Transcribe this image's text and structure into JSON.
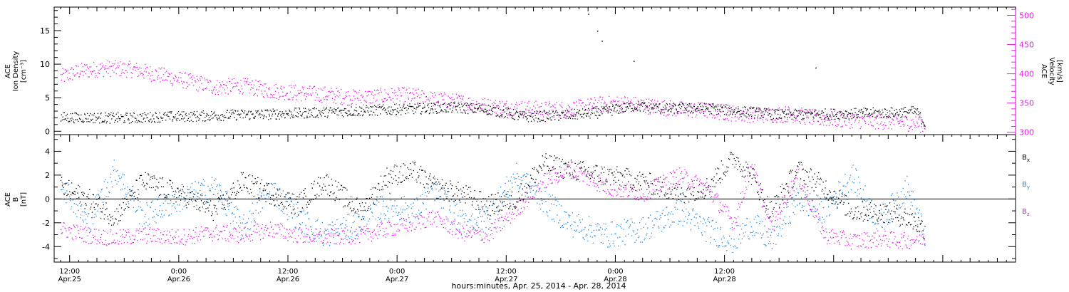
{
  "chart_data": [
    {
      "type": "scatter",
      "panel": "top",
      "ylabel_left": [
        "ACE",
        "Ion Density",
        "[cm⁻³]"
      ],
      "ylabel_right": [
        "ACE",
        "Velocity",
        "[km/s]"
      ],
      "ylim_left": [
        -0.5,
        18.5
      ],
      "ylim_right": [
        296,
        514
      ],
      "yticks_left": [
        "0",
        "5",
        "10",
        "15"
      ],
      "yticks_right": [
        "300",
        "350",
        "400",
        "450",
        "500"
      ],
      "colors": {
        "density": "#000000",
        "velocity": "#e81ce8"
      },
      "x_unit": "hours since Apr.25 00:00",
      "series": [
        {
          "color": "#000000",
          "axis": "left",
          "x": [
            11,
            14,
            18,
            22,
            26,
            30,
            34,
            38,
            42,
            46,
            50,
            54,
            58,
            62,
            66,
            70,
            74,
            78,
            82,
            86,
            90,
            94,
            98,
            102,
            105,
            106
          ],
          "y": [
            2.1,
            2.1,
            2.0,
            2.2,
            2.3,
            2.5,
            2.6,
            2.8,
            3.0,
            3.2,
            3.4,
            3.6,
            3.3,
            2.2,
            2.4,
            2.8,
            3.8,
            3.4,
            3.5,
            3.0,
            2.5,
            2.6,
            2.7,
            2.8,
            3.0,
            1.3
          ]
        },
        {
          "color": "#e81ce8",
          "axis": "right",
          "x": [
            11,
            13,
            16,
            19,
            22,
            25,
            28,
            31,
            34,
            37,
            40,
            43,
            46,
            49,
            52,
            55,
            58,
            61,
            64,
            67,
            70,
            73,
            76,
            79,
            82,
            85,
            88,
            91,
            94,
            97,
            100,
            103,
            106
          ],
          "y": [
            395,
            405,
            410,
            408,
            398,
            388,
            378,
            380,
            372,
            368,
            365,
            360,
            362,
            364,
            357,
            352,
            345,
            342,
            340,
            340,
            348,
            350,
            345,
            340,
            338,
            333,
            330,
            332,
            325,
            322,
            320,
            318,
            314
          ]
        }
      ],
      "sparse_points": [
        {
          "x": 69,
          "y": 17.5
        },
        {
          "x": 70,
          "y": 15.0
        },
        {
          "x": 70.5,
          "y": 13.5
        },
        {
          "x": 74,
          "y": 10.5
        },
        {
          "x": 94,
          "y": 9.5
        }
      ]
    },
    {
      "type": "scatter",
      "panel": "bottom",
      "ylabel_left": [
        "ACE",
        "B",
        "[nT]"
      ],
      "ylim": [
        -5.3,
        5.4
      ],
      "yticks": [
        "-4",
        "-2",
        "0",
        "2",
        "4"
      ],
      "legend": [
        "B",
        "B",
        "B"
      ],
      "legend_subscripts": [
        "x",
        "y",
        "z"
      ],
      "legend_position": "right",
      "colors": {
        "Bx": "#000000",
        "By": "#1e88e5",
        "Bz": "#e81ce8"
      },
      "x_unit": "hours since Apr.25 00:00",
      "series": [
        {
          "name": "Bx",
          "color": "#000000",
          "x": [
            11,
            14,
            17,
            20,
            24,
            28,
            31,
            34,
            37,
            40,
            44,
            47,
            50,
            52,
            55,
            58,
            61,
            64,
            67,
            71,
            75,
            79,
            82,
            85,
            87,
            89,
            92,
            95,
            98,
            101,
            104,
            106
          ],
          "y": [
            1.0,
            0.0,
            -1.5,
            1.5,
            0.5,
            -1.0,
            1.5,
            0.5,
            -0.5,
            1.5,
            -1.0,
            2.0,
            2.3,
            1.0,
            0.5,
            -0.5,
            0.0,
            3.0,
            2.5,
            2.0,
            1.5,
            0.5,
            1.0,
            3.5,
            2.0,
            -1.0,
            2.5,
            1.0,
            -1.0,
            -1.0,
            -1.5,
            -2.5
          ]
        },
        {
          "name": "By",
          "color": "#1e88e5",
          "x": [
            11,
            14,
            17,
            20,
            24,
            28,
            31,
            34,
            37,
            40,
            44,
            47,
            50,
            52,
            55,
            58,
            61,
            64,
            67,
            71,
            75,
            79,
            82,
            85,
            87,
            89,
            92,
            95,
            98,
            101,
            104,
            106
          ],
          "y": [
            1.5,
            -2.0,
            2.5,
            -1.5,
            0.0,
            1.0,
            -2.5,
            1.0,
            -1.5,
            -3.0,
            -2.0,
            -0.5,
            -1.0,
            1.0,
            -2.0,
            -1.5,
            2.0,
            0.0,
            -2.0,
            -3.0,
            -2.5,
            -1.0,
            -2.5,
            -3.5,
            -2.0,
            -3.5,
            0.0,
            -1.0,
            2.0,
            -2.0,
            1.0,
            -3.0
          ]
        },
        {
          "name": "Bz",
          "color": "#e81ce8",
          "x": [
            11,
            14,
            17,
            20,
            24,
            28,
            31,
            34,
            37,
            40,
            44,
            47,
            50,
            52,
            55,
            58,
            61,
            64,
            67,
            71,
            75,
            79,
            82,
            85,
            87,
            89,
            92,
            95,
            98,
            101,
            104,
            106
          ],
          "y": [
            -2.5,
            -3.0,
            -3.3,
            -3.0,
            -3.2,
            -2.8,
            -3.0,
            -2.5,
            -3.0,
            -3.2,
            -3.0,
            -2.5,
            -2.0,
            -1.5,
            -2.8,
            -3.0,
            -1.0,
            1.5,
            2.5,
            1.0,
            0.5,
            2.0,
            1.0,
            -2.0,
            3.0,
            -2.5,
            2.0,
            -3.0,
            -3.5,
            -3.3,
            -3.5,
            -3.2
          ]
        }
      ]
    }
  ],
  "x_axis": {
    "xlim_hours": [
      10.3,
      116
    ],
    "tick_times": [
      "12:00",
      "0:00",
      "12:00",
      "0:00",
      "12:00",
      "0:00",
      "12:00"
    ],
    "tick_dates": [
      "Apr.25",
      "Apr.26",
      "Apr.26",
      "Apr.27",
      "Apr.27",
      "Apr.28",
      "Apr.28"
    ],
    "tick_hours": [
      12,
      24,
      36,
      48,
      60,
      72,
      84
    ],
    "label": "hours:minutes, Apr. 25, 2014 - Apr. 28, 2014"
  }
}
